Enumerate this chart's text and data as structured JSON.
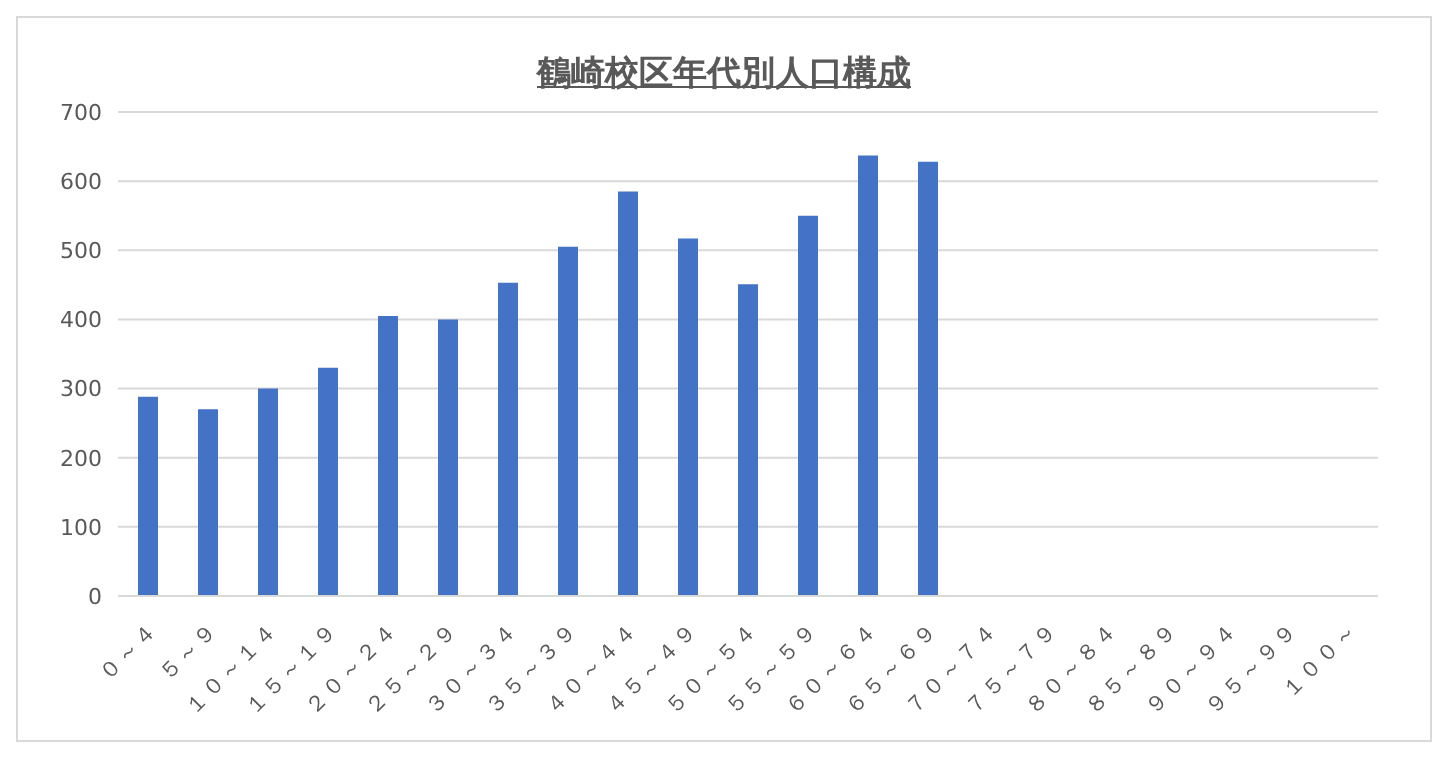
{
  "chart_data": {
    "type": "bar",
    "title": "鶴崎校区年代別人口構成",
    "categories": [
      "０～４",
      "５～９",
      "１０～１４",
      "１５～１９",
      "２０～２４",
      "２５～２９",
      "３０～３４",
      "３５～３９",
      "４０～４４",
      "４５～４９",
      "５０～５４",
      "５５～５９",
      "６０～６４",
      "６５～６９",
      "７０～７４",
      "７５～７９",
      "８０～８４",
      "８５～８９",
      "９０～９４",
      "９５～９９",
      "１００～"
    ],
    "values": [
      288,
      270,
      300,
      330,
      405,
      400,
      453,
      505,
      585,
      517,
      451,
      550,
      637,
      628,
      null,
      null,
      null,
      null,
      null,
      null,
      null
    ],
    "color": "#4472c4",
    "ylim": [
      0,
      700
    ],
    "yticks": [
      0,
      100,
      200,
      300,
      400,
      500,
      600,
      700
    ],
    "grid": "y"
  }
}
